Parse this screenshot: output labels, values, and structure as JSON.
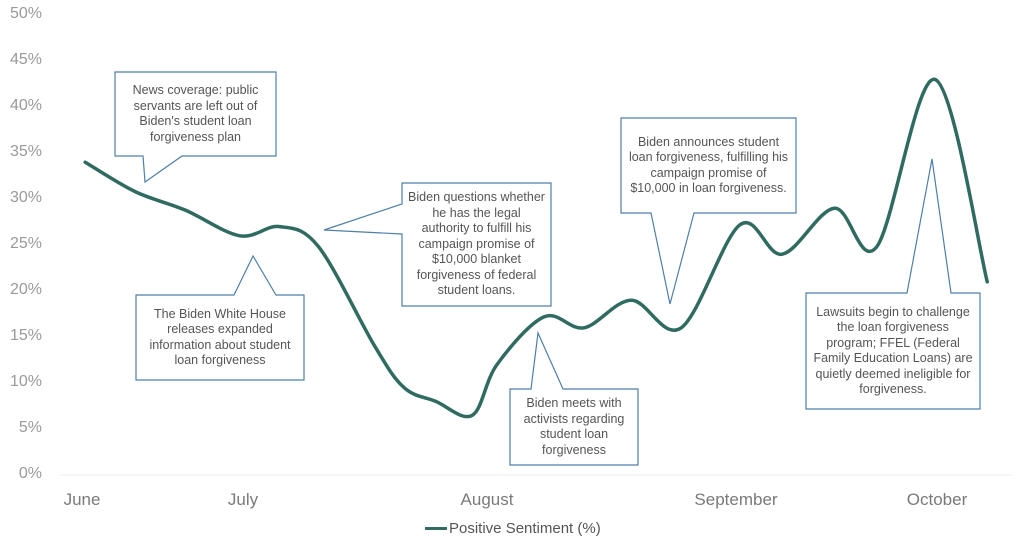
{
  "chart_data": {
    "type": "line",
    "title": "",
    "xlabel": "",
    "ylabel": "",
    "ylim": [
      0,
      50
    ],
    "yticks": [
      "0%",
      "5%",
      "10%",
      "15%",
      "20%",
      "25%",
      "30%",
      "35%",
      "40%",
      "45%",
      "50%"
    ],
    "xticks": [
      "June",
      "July",
      "August",
      "September",
      "October"
    ],
    "grid": false,
    "legend_position": "bottom-center",
    "series": [
      {
        "name": "Positive Sentiment (%)",
        "color": "#2f6b60",
        "x_month_index": [
          0.02,
          0.33,
          0.64,
          0.98,
          1.15,
          1.31,
          1.54,
          1.66,
          1.79,
          1.94,
          2.04,
          2.23,
          2.39,
          2.58,
          2.78,
          3.02,
          3.23,
          3.49,
          3.7,
          3.99,
          4.25
        ],
        "values": [
          34,
          30.8,
          28.8,
          26,
          27,
          24.8,
          14,
          9.5,
          8,
          6.5,
          12,
          17.2,
          16,
          19,
          16,
          27.2,
          24,
          29,
          24.8,
          43,
          21
        ]
      }
    ],
    "annotations": [
      "News coverage: public servants are left out of Biden's student loan forgiveness plan",
      "The Biden White House releases expanded information about student loan forgiveness",
      "Biden questions whether he has the legal authority to fulfill his campaign promise of $10,000 blanket forgiveness of federal student loans.",
      "Biden meets with activists regarding student loan forgiveness",
      "Biden announces student loan forgiveness, fulfilling his campaign promise of $10,000 in loan forgiveness.",
      "Lawsuits begin to challenge the loan forgiveness program; FFEL (Federal Family Education Loans) are quietly deemed ineligible for forgiveness."
    ],
    "annotation_border_color": "#4f7fa6"
  }
}
